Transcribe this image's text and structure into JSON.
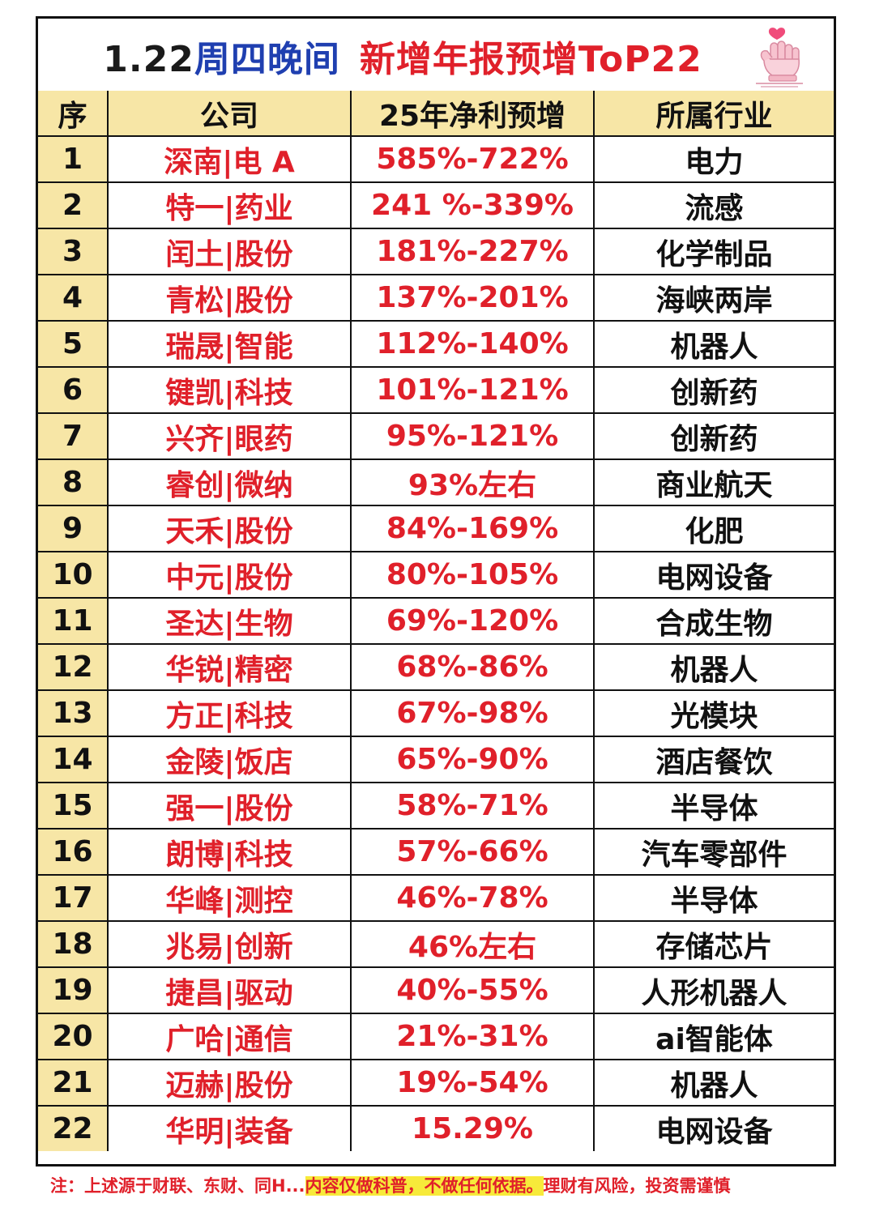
{
  "title": {
    "date": "1.22",
    "day": "周四晚间",
    "main": "新增年报预增ToP22"
  },
  "table": {
    "headers": {
      "rank": "序",
      "company": "公司",
      "growth": "25年净利预增",
      "industry": "所属行业"
    },
    "rows": [
      {
        "rank": "1",
        "company": "深南|电 A",
        "growth": "585%-722%",
        "industry": "电力"
      },
      {
        "rank": "2",
        "company": "特一|药业",
        "growth": "241 %-339%",
        "industry": "流感"
      },
      {
        "rank": "3",
        "company": "闰土|股份",
        "growth": "181%-227%",
        "industry": "化学制品"
      },
      {
        "rank": "4",
        "company": "青松|股份",
        "growth": "137%-201%",
        "industry": "海峡两岸"
      },
      {
        "rank": "5",
        "company": "瑞晟|智能",
        "growth": "112%-140%",
        "industry": "机器人"
      },
      {
        "rank": "6",
        "company": "键凯|科技",
        "growth": "101%-121%",
        "industry": "创新药"
      },
      {
        "rank": "7",
        "company": "兴齐|眼药",
        "growth": "95%-121%",
        "industry": "创新药"
      },
      {
        "rank": "8",
        "company": "睿创|微纳",
        "growth": "93%左右",
        "industry": "商业航天"
      },
      {
        "rank": "9",
        "company": "天禾|股份",
        "growth": "84%-169%",
        "industry": "化肥"
      },
      {
        "rank": "10",
        "company": "中元|股份",
        "growth": "80%-105%",
        "industry": "电网设备"
      },
      {
        "rank": "11",
        "company": "圣达|生物",
        "growth": "69%-120%",
        "industry": "合成生物"
      },
      {
        "rank": "12",
        "company": "华锐|精密",
        "growth": "68%-86%",
        "industry": "机器人"
      },
      {
        "rank": "13",
        "company": "方正|科技",
        "growth": "67%-98%",
        "industry": "光模块"
      },
      {
        "rank": "14",
        "company": "金陵|饭店",
        "growth": "65%-90%",
        "industry": "酒店餐饮"
      },
      {
        "rank": "15",
        "company": "强一|股份",
        "growth": "58%-71%",
        "industry": "半导体"
      },
      {
        "rank": "16",
        "company": "朗博|科技",
        "growth": "57%-66%",
        "industry": "汽车零部件"
      },
      {
        "rank": "17",
        "company": "华峰|测控",
        "growth": "46%-78%",
        "industry": "半导体"
      },
      {
        "rank": "18",
        "company": "兆易|创新",
        "growth": "46%左右",
        "industry": "存储芯片"
      },
      {
        "rank": "19",
        "company": "捷昌|驱动",
        "growth": "40%-55%",
        "industry": "人形机器人"
      },
      {
        "rank": "20",
        "company": "广哈|通信",
        "growth": "21%-31%",
        "industry": "ai智能体"
      },
      {
        "rank": "21",
        "company": "迈赫|股份",
        "growth": "19%-54%",
        "industry": "机器人"
      },
      {
        "rank": "22",
        "company": "华明|装备",
        "growth": "15.29%",
        "industry": "电网设备"
      }
    ]
  },
  "footer": {
    "prefix": "注：上述源于财联、东财、同H...",
    "highlight": "内容仅做科普，不做任何依据。",
    "suffix": "理财有风险，投资需谨慎"
  },
  "icons": {
    "title_decoration": "finger-heart-hand-icon"
  },
  "colors": {
    "accent_red": "#e0202a",
    "title_blue": "#1f3fb0",
    "header_fill": "#f7e6a6",
    "highlight_yellow": "#f7ea3a"
  }
}
